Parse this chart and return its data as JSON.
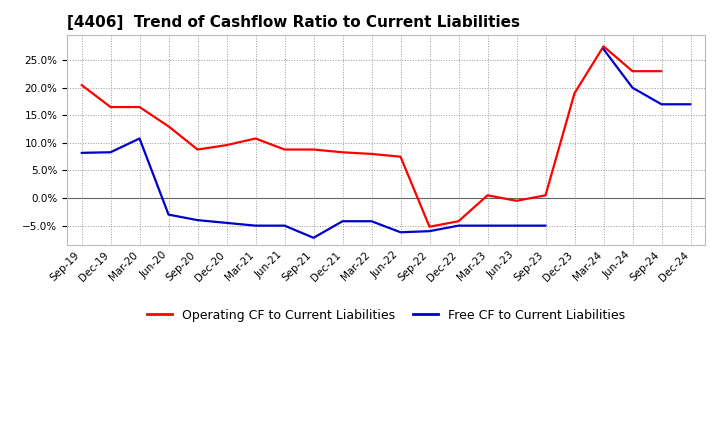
{
  "title": "[4406]  Trend of Cashflow Ratio to Current Liabilities",
  "x_labels": [
    "Sep-19",
    "Dec-19",
    "Mar-20",
    "Jun-20",
    "Sep-20",
    "Dec-20",
    "Mar-21",
    "Jun-21",
    "Sep-21",
    "Dec-21",
    "Mar-22",
    "Jun-22",
    "Sep-22",
    "Dec-22",
    "Mar-23",
    "Jun-23",
    "Sep-23",
    "Dec-23",
    "Mar-24",
    "Jun-24",
    "Sep-24",
    "Dec-24"
  ],
  "op_cf": [
    0.205,
    0.165,
    0.165,
    0.13,
    0.088,
    0.096,
    0.108,
    0.088,
    0.088,
    0.083,
    0.08,
    0.075,
    -0.052,
    -0.042,
    0.005,
    -0.005,
    0.005,
    0.19,
    0.275,
    0.23,
    0.23,
    null
  ],
  "free_cf": [
    0.082,
    0.083,
    0.108,
    -0.03,
    -0.04,
    -0.045,
    -0.05,
    -0.05,
    -0.072,
    -0.042,
    -0.042,
    -0.062,
    -0.06,
    -0.05,
    -0.05,
    -0.05,
    -0.05,
    null,
    0.27,
    0.2,
    0.17,
    0.17
  ],
  "op_color": "#FF0000",
  "free_color": "#0000CC",
  "bg_color": "#FFFFFF",
  "grid_color": "#999999",
  "ylim_low": -0.085,
  "ylim_high": 0.295,
  "yticks": [
    -0.05,
    0.0,
    0.05,
    0.1,
    0.15,
    0.2,
    0.25
  ],
  "legend_op": "Operating CF to Current Liabilities",
  "legend_free": "Free CF to Current Liabilities",
  "title_fontsize": 11,
  "tick_fontsize": 7.5,
  "legend_fontsize": 9
}
